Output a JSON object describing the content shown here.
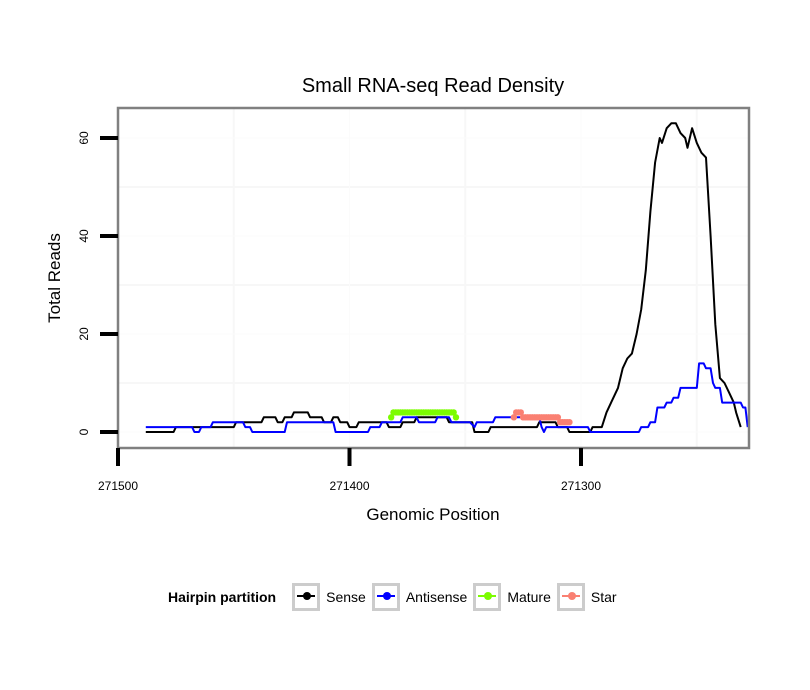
{
  "chart_data": {
    "type": "line",
    "title": "Small RNA-seq Read Density",
    "xlabel": "Genomic Position",
    "ylabel": "Total Reads",
    "xlim": [
      271500,
      271228
    ],
    "x_reversed": true,
    "ylim": [
      -3,
      66
    ],
    "xticks": [
      271500,
      271400,
      271300
    ],
    "xtick_labels": [
      "271500",
      "271400",
      "271300"
    ],
    "yticks": [
      0,
      20,
      40,
      60
    ],
    "ytick_labels": [
      "0",
      "20",
      "40",
      "60"
    ],
    "grid": true,
    "legend": {
      "title": "Hairpin partition",
      "placement": "bottom",
      "entries": [
        {
          "name": "Sense",
          "color": "#000000"
        },
        {
          "name": "Antisense",
          "color": "#0000ff"
        },
        {
          "name": "Mature",
          "color": "#7cfc00"
        },
        {
          "name": "Star",
          "color": "#fa8072"
        }
      ]
    },
    "series": [
      {
        "name": "Sense",
        "color": "#000000",
        "points": [
          [
            271488,
            0
          ],
          [
            271476,
            0
          ],
          [
            271475,
            1
          ],
          [
            271450,
            1
          ],
          [
            271449,
            2
          ],
          [
            271438,
            2
          ],
          [
            271437,
            3
          ],
          [
            271432,
            3
          ],
          [
            271431,
            2
          ],
          [
            271429,
            2
          ],
          [
            271428,
            3
          ],
          [
            271425,
            3
          ],
          [
            271424,
            4
          ],
          [
            271418,
            4
          ],
          [
            271417,
            3
          ],
          [
            271412,
            3
          ],
          [
            271411,
            2
          ],
          [
            271408,
            2
          ],
          [
            271407,
            3
          ],
          [
            271405,
            3
          ],
          [
            271404,
            2
          ],
          [
            271401,
            2
          ],
          [
            271400,
            1
          ],
          [
            271397,
            1
          ],
          [
            271396,
            2
          ],
          [
            271384,
            2
          ],
          [
            271383,
            1
          ],
          [
            271378,
            1
          ],
          [
            271377,
            2
          ],
          [
            271372,
            2
          ],
          [
            271371,
            3
          ],
          [
            271358,
            3
          ],
          [
            271357,
            2
          ],
          [
            271347,
            2
          ],
          [
            271346,
            0
          ],
          [
            271340,
            0
          ],
          [
            271339,
            1
          ],
          [
            271319,
            1
          ],
          [
            271318,
            2
          ],
          [
            271311,
            2
          ],
          [
            271310,
            1
          ],
          [
            271306,
            1
          ],
          [
            271305,
            0
          ],
          [
            271296,
            0
          ],
          [
            271295,
            1
          ],
          [
            271291,
            1
          ],
          [
            271289,
            4
          ],
          [
            271287,
            6
          ],
          [
            271284,
            9
          ],
          [
            271282,
            13
          ],
          [
            271280,
            15
          ],
          [
            271278,
            16
          ],
          [
            271276,
            20
          ],
          [
            271274,
            25
          ],
          [
            271272,
            33
          ],
          [
            271270,
            45
          ],
          [
            271268,
            55
          ],
          [
            271266,
            60
          ],
          [
            271265,
            59
          ],
          [
            271263,
            62
          ],
          [
            271261,
            63
          ],
          [
            271259,
            63
          ],
          [
            271257,
            61
          ],
          [
            271255,
            60
          ],
          [
            271254,
            58
          ],
          [
            271252,
            62
          ],
          [
            271250,
            59
          ],
          [
            271248,
            57
          ],
          [
            271246,
            56
          ],
          [
            271244,
            40
          ],
          [
            271242,
            22
          ],
          [
            271240,
            11
          ],
          [
            271238,
            10
          ],
          [
            271236,
            8
          ],
          [
            271234,
            6
          ],
          [
            271233,
            4
          ],
          [
            271231,
            1
          ]
        ]
      },
      {
        "name": "Antisense",
        "color": "#0000ff",
        "points": [
          [
            271488,
            1
          ],
          [
            271468,
            1
          ],
          [
            271467,
            0
          ],
          [
            271465,
            0
          ],
          [
            271464,
            1
          ],
          [
            271460,
            1
          ],
          [
            271459,
            2
          ],
          [
            271446,
            2
          ],
          [
            271445,
            1
          ],
          [
            271443,
            1
          ],
          [
            271442,
            0
          ],
          [
            271428,
            0
          ],
          [
            271427,
            2
          ],
          [
            271407,
            2
          ],
          [
            271406,
            0
          ],
          [
            271392,
            0
          ],
          [
            271391,
            1
          ],
          [
            271387,
            1
          ],
          [
            271386,
            2
          ],
          [
            271378,
            2
          ],
          [
            271377,
            3
          ],
          [
            271371,
            3
          ],
          [
            271370,
            2
          ],
          [
            271363,
            2
          ],
          [
            271362,
            3
          ],
          [
            271357,
            3
          ],
          [
            271356,
            2
          ],
          [
            271348,
            2
          ],
          [
            271346,
            1
          ],
          [
            271345,
            2
          ],
          [
            271338,
            2
          ],
          [
            271337,
            3
          ],
          [
            271318,
            3
          ],
          [
            271317,
            1
          ],
          [
            271316,
            0
          ],
          [
            271315,
            1
          ],
          [
            271297,
            1
          ],
          [
            271296,
            0
          ],
          [
            271275,
            0
          ],
          [
            271274,
            1
          ],
          [
            271271,
            1
          ],
          [
            271270,
            2
          ],
          [
            271268,
            2
          ],
          [
            271267,
            5
          ],
          [
            271264,
            5
          ],
          [
            271263,
            6
          ],
          [
            271261,
            6
          ],
          [
            271260,
            7
          ],
          [
            271258,
            7
          ],
          [
            271257,
            9
          ],
          [
            271250,
            9
          ],
          [
            271249,
            14
          ],
          [
            271247,
            14
          ],
          [
            271246,
            13
          ],
          [
            271244,
            13
          ],
          [
            271243,
            10
          ],
          [
            271242,
            9
          ],
          [
            271240,
            9
          ],
          [
            271239,
            6
          ],
          [
            271231,
            6
          ],
          [
            271230,
            5
          ],
          [
            271229,
            5
          ],
          [
            271228,
            1
          ]
        ]
      },
      {
        "name": "Mature",
        "color": "#7cfc00",
        "points": [
          [
            271382,
            3
          ],
          [
            271381,
            4
          ],
          [
            271370,
            4
          ],
          [
            271364,
            4
          ],
          [
            271358,
            4
          ],
          [
            271355,
            4
          ],
          [
            271354,
            3
          ]
        ]
      },
      {
        "name": "Star",
        "color": "#fa8072",
        "points": [
          [
            271329,
            3
          ],
          [
            271328,
            4
          ],
          [
            271326,
            4
          ],
          [
            271325,
            3
          ],
          [
            271315,
            3
          ],
          [
            271310,
            3
          ],
          [
            271309,
            2
          ],
          [
            271305,
            2
          ]
        ]
      }
    ]
  }
}
